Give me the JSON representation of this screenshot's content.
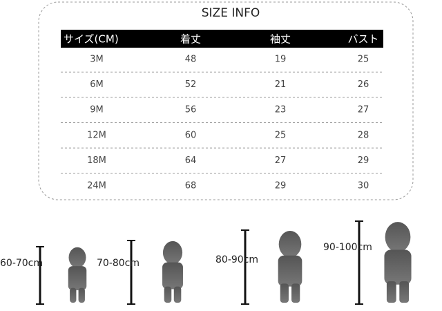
{
  "title": "SIZE INFO",
  "table": {
    "header": [
      "サイズ(CM)",
      "着丈",
      "袖丈",
      "バスト"
    ],
    "rows": [
      [
        "3M",
        "48",
        "19",
        "25"
      ],
      [
        "6M",
        "52",
        "21",
        "26"
      ],
      [
        "9M",
        "56",
        "23",
        "27"
      ],
      [
        "12M",
        "60",
        "25",
        "28"
      ],
      [
        "18M",
        "64",
        "27",
        "29"
      ],
      [
        "24M",
        "68",
        "29",
        "30"
      ]
    ]
  },
  "heights": [
    "60-70cm",
    "70-80cm",
    "80-90cm",
    "90-100cm"
  ]
}
